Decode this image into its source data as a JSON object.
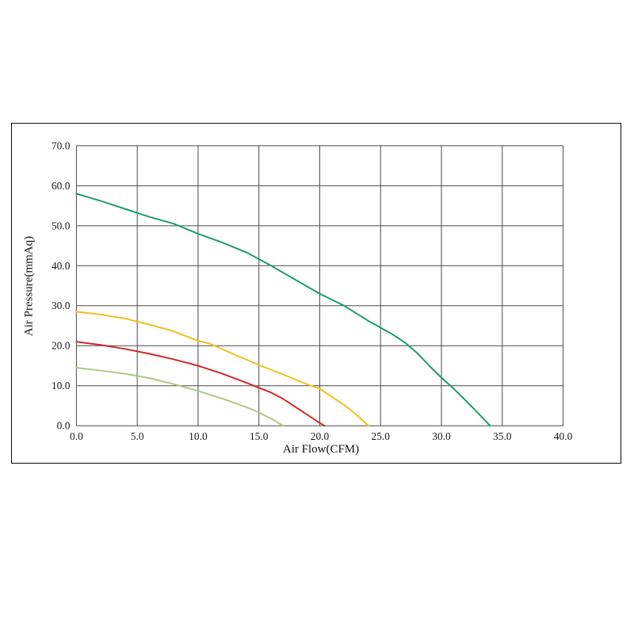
{
  "chart_data": {
    "type": "line",
    "title": "",
    "xlabel": "Air Flow(CFM)",
    "ylabel": "Air Pressure(mmAq)",
    "xlim": [
      0,
      40
    ],
    "ylim": [
      0,
      70
    ],
    "grid": true,
    "legend": "none",
    "grid_color": "#4a4a4a",
    "xtick_values": [
      0,
      5,
      10,
      15,
      20,
      25,
      30,
      35,
      40
    ],
    "xtick_labels": [
      "0.0",
      "5.0",
      "10.0",
      "15.0",
      "20.0",
      "25.0",
      "30.0",
      "35.0",
      "40.0"
    ],
    "ytick_values": [
      0,
      10,
      20,
      30,
      40,
      50,
      60,
      70
    ],
    "ytick_labels": [
      "0.0",
      "10.0",
      "20.0",
      "30.0",
      "40.0",
      "50.0",
      "60.0",
      "70.0"
    ],
    "series": [
      {
        "name": "green-curve",
        "color": "#1a9e63",
        "points": [
          [
            0,
            58
          ],
          [
            2,
            56.2
          ],
          [
            4,
            54.2
          ],
          [
            6,
            52.2
          ],
          [
            8,
            50.5
          ],
          [
            10,
            48
          ],
          [
            12,
            45.8
          ],
          [
            14,
            43.3
          ],
          [
            16,
            40
          ],
          [
            18,
            36.5
          ],
          [
            20,
            33
          ],
          [
            22,
            30
          ],
          [
            24,
            26.2
          ],
          [
            25,
            24.5
          ],
          [
            26,
            22.8
          ],
          [
            27,
            20.8
          ],
          [
            28,
            18.2
          ],
          [
            29,
            15
          ],
          [
            30,
            12
          ],
          [
            31,
            9.3
          ],
          [
            32,
            6.3
          ],
          [
            33,
            3.2
          ],
          [
            34,
            0
          ]
        ]
      },
      {
        "name": "yellow-curve",
        "color": "#f0c01e",
        "points": [
          [
            0,
            28.5
          ],
          [
            2,
            27.8
          ],
          [
            4,
            26.8
          ],
          [
            6,
            25.3
          ],
          [
            8,
            23.6
          ],
          [
            10,
            21.2
          ],
          [
            11,
            20.5
          ],
          [
            13,
            17.8
          ],
          [
            15,
            15.2
          ],
          [
            17,
            12.8
          ],
          [
            19,
            10.3
          ],
          [
            20,
            9.3
          ],
          [
            21,
            7.2
          ],
          [
            22,
            5.2
          ],
          [
            23,
            2.8
          ],
          [
            24,
            0
          ]
        ]
      },
      {
        "name": "red-curve",
        "color": "#d2292b",
        "points": [
          [
            0,
            21
          ],
          [
            2,
            20.2
          ],
          [
            4,
            19.2
          ],
          [
            6,
            18
          ],
          [
            8,
            16.6
          ],
          [
            10,
            15
          ],
          [
            12,
            13
          ],
          [
            14,
            10.7
          ],
          [
            15,
            9.5
          ],
          [
            16,
            8.3
          ],
          [
            17,
            6.7
          ],
          [
            18,
            4.7
          ],
          [
            19,
            2.7
          ],
          [
            20,
            0.7
          ],
          [
            20.4,
            0
          ]
        ]
      },
      {
        "name": "light-green-curve",
        "color": "#aec87d",
        "points": [
          [
            0,
            14.5
          ],
          [
            2,
            13.8
          ],
          [
            4,
            13
          ],
          [
            6,
            11.9
          ],
          [
            8,
            10.4
          ],
          [
            10,
            8.7
          ],
          [
            12,
            6.8
          ],
          [
            14,
            4.6
          ],
          [
            15,
            3.3
          ],
          [
            16,
            1.8
          ],
          [
            17,
            0
          ]
        ]
      }
    ]
  }
}
